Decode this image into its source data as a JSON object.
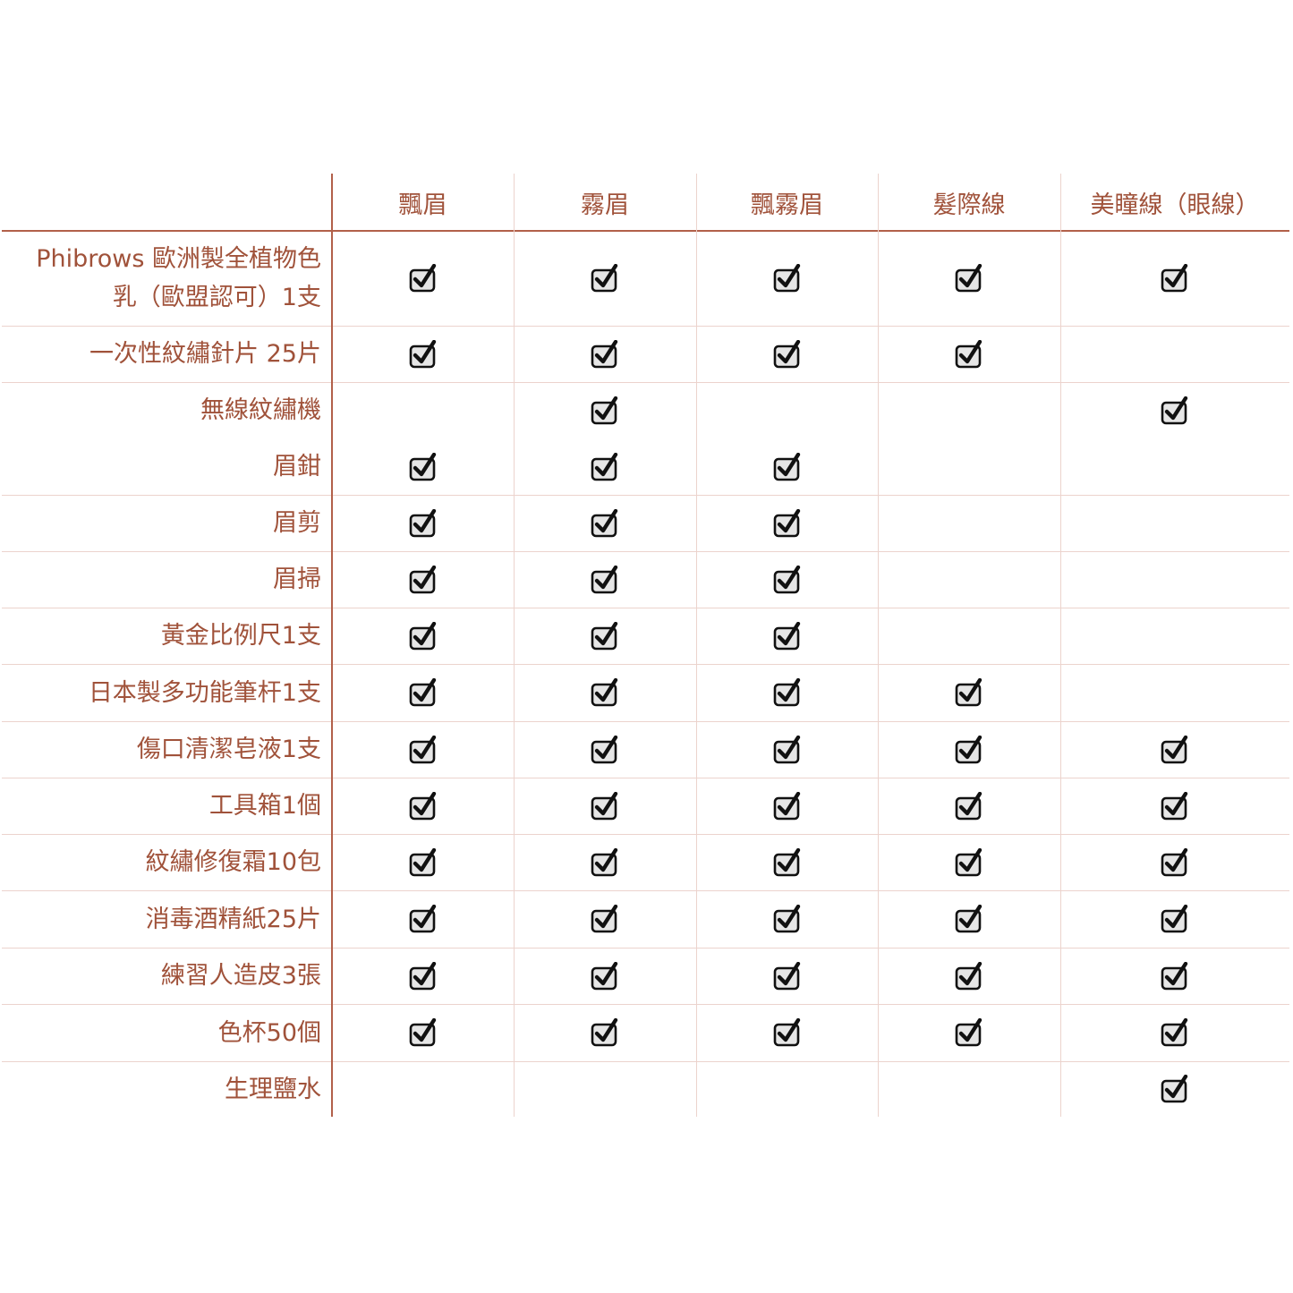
{
  "table": {
    "columns": [
      "飄眉",
      "霧眉",
      "飄霧眉",
      "髮際線",
      "美瞳線（眼線）"
    ],
    "rows": [
      {
        "label": "Phibrows 歐洲製全植物色乳（歐盟認可）1支",
        "checks": [
          true,
          true,
          true,
          true,
          true
        ]
      },
      {
        "label": "一次性紋繡針片 25片",
        "checks": [
          true,
          true,
          true,
          true,
          false
        ]
      },
      {
        "label": "無線紋繡機",
        "checks": [
          false,
          true,
          false,
          false,
          true
        ]
      },
      {
        "label": "眉鉗",
        "checks": [
          true,
          true,
          true,
          false,
          false
        ]
      },
      {
        "label": "眉剪",
        "checks": [
          true,
          true,
          true,
          false,
          false
        ]
      },
      {
        "label": "眉掃",
        "checks": [
          true,
          true,
          true,
          false,
          false
        ]
      },
      {
        "label": "黃金比例尺1支",
        "checks": [
          true,
          true,
          true,
          false,
          false
        ]
      },
      {
        "label": "日本製多功能筆杆1支",
        "checks": [
          true,
          true,
          true,
          true,
          false
        ]
      },
      {
        "label": "傷口清潔皂液1支",
        "checks": [
          true,
          true,
          true,
          true,
          true
        ]
      },
      {
        "label": "工具箱1個",
        "checks": [
          true,
          true,
          true,
          true,
          true
        ]
      },
      {
        "label": "紋繡修復霜10包",
        "checks": [
          true,
          true,
          true,
          true,
          true
        ]
      },
      {
        "label": "消毒酒精紙25片",
        "checks": [
          true,
          true,
          true,
          true,
          true
        ]
      },
      {
        "label": "練習人造皮3張",
        "checks": [
          true,
          true,
          true,
          true,
          true
        ]
      },
      {
        "label": "色杯50個",
        "checks": [
          true,
          true,
          true,
          true,
          true
        ]
      },
      {
        "label": "生理鹽水",
        "checks": [
          false,
          false,
          false,
          false,
          true
        ]
      }
    ]
  },
  "colors": {
    "text": "#a0523a",
    "main_rule": "#b2604a",
    "grid_rule": "#ecd3cd",
    "check_box": "#e6e6e6",
    "check_mark": "#111111"
  },
  "icons": {
    "check": "checkbox-checked-icon"
  }
}
